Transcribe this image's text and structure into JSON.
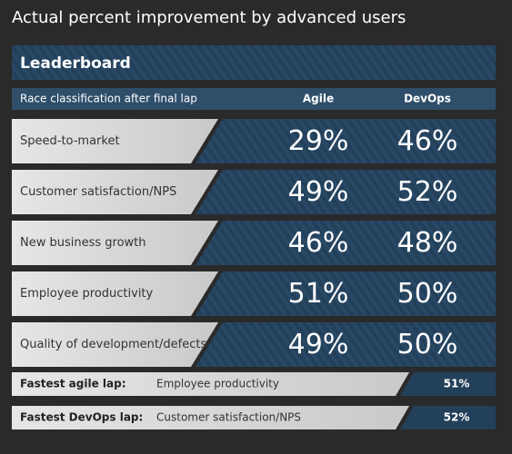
{
  "title": "Actual percent improvement by advanced users",
  "leaderboard": {
    "title": "Leaderboard"
  },
  "table": {
    "header": [
      "Race classification after final lap",
      "Agile",
      "DevOps"
    ],
    "rows": [
      [
        "Speed-to-market",
        "29%",
        "46%"
      ],
      [
        "Customer satisfaction/NPS",
        "49%",
        "52%"
      ],
      [
        "New business growth",
        "46%",
        "48%"
      ],
      [
        "Employee productivity",
        "51%",
        "50%"
      ],
      [
        "Quality of development/defects",
        "49%",
        "50%"
      ]
    ]
  },
  "fastest": [
    {
      "label": "Fastest agile lap:",
      "category": "Employee productivity",
      "value": "51%"
    },
    {
      "label": "Fastest DevOps lap:",
      "category": "Customer satisfaction/NPS",
      "value": "52%"
    }
  ]
}
